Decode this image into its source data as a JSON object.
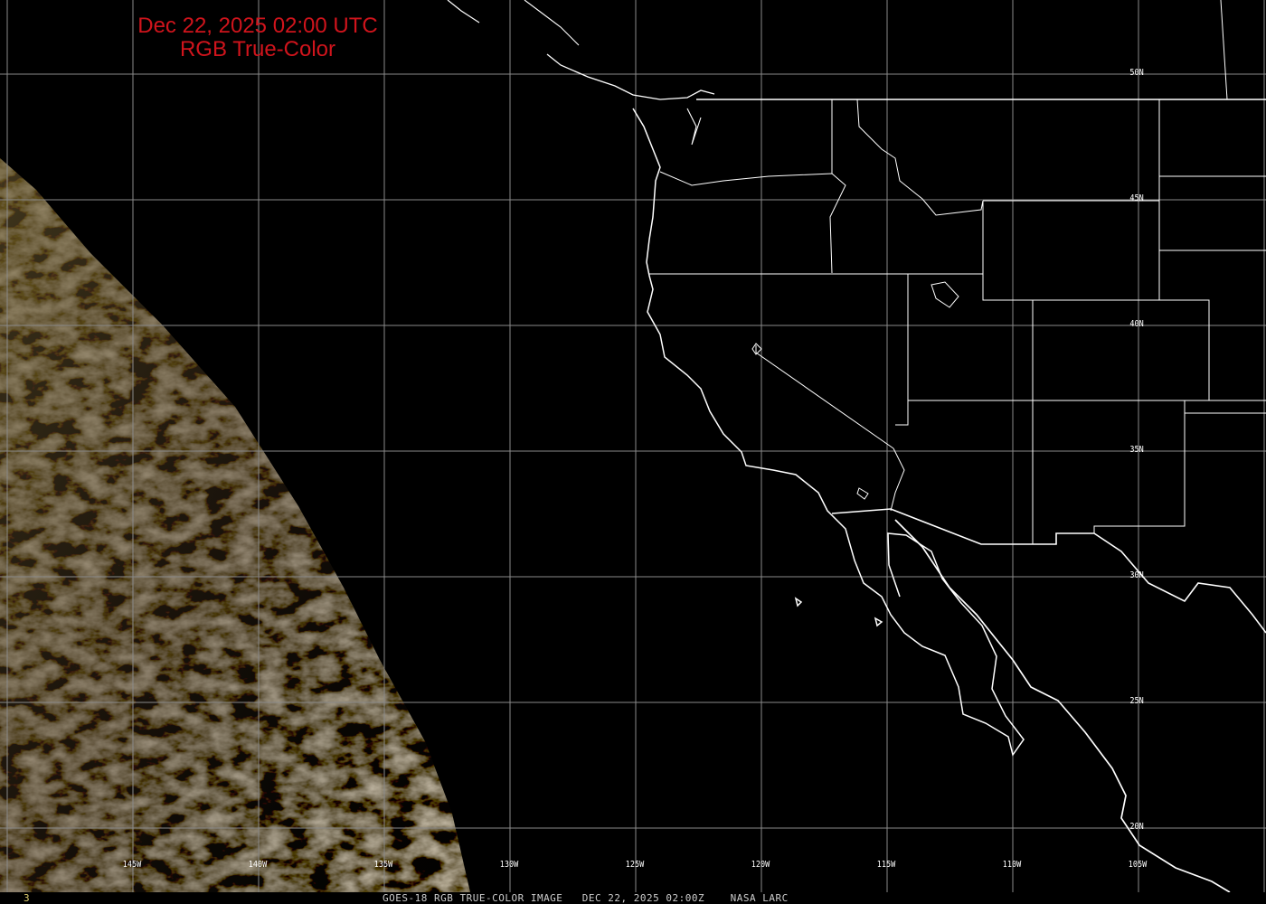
{
  "title": {
    "line1": "Dec 22, 2025 02:00 UTC",
    "line2": "RGB True-Color"
  },
  "caption": {
    "frame": "3",
    "text": "GOES-18 RGB TRUE-COLOR IMAGE   DEC 22, 2025 02:00Z    NASA LARC"
  },
  "grid": {
    "longitudes": [
      "145W",
      "140W",
      "135W",
      "130W",
      "125W",
      "120W",
      "115W",
      "110W",
      "105W"
    ],
    "latitudes": [
      "50N",
      "45N",
      "40N",
      "35N",
      "30N",
      "25N",
      "20N"
    ]
  },
  "colors": {
    "title": "#d0141c",
    "borders": "#ffffff",
    "grid": "#8a8a8a",
    "background": "#000000"
  }
}
